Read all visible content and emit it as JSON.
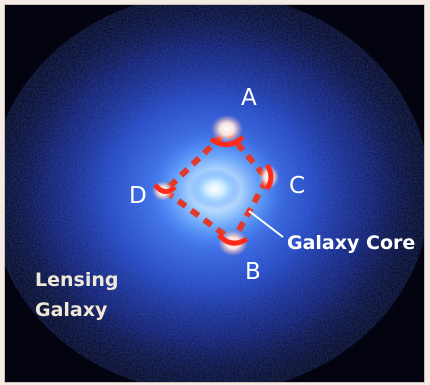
{
  "image": {
    "description_free": true,
    "labels": {
      "image_a": "A",
      "image_b": "B",
      "image_c": "C",
      "image_d": "D",
      "galaxy_core": "Galaxy Core",
      "lensing_line1": "Lensing",
      "lensing_line2": "Galaxy"
    },
    "colors": {
      "background": "#030310",
      "halo_outer": "#1f3fc8",
      "halo_mid": "#3a74ff",
      "core": "#dff4ff",
      "quad_outline": "#e23a2a",
      "image_spot": "#ff2a1a",
      "label_text": "#ffffff"
    }
  }
}
